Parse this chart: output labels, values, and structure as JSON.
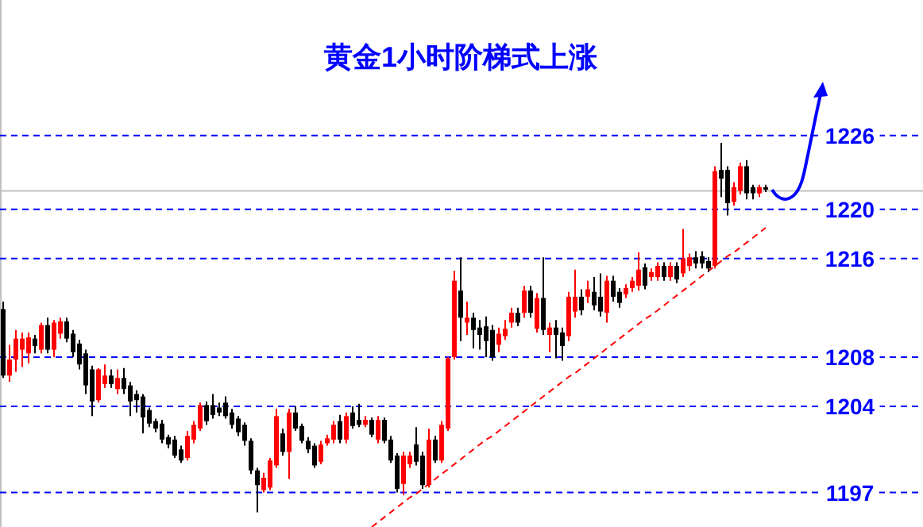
{
  "chart_data": {
    "type": "candlestick",
    "title": "黄金1小时阶梯式上涨",
    "categories": [
      null,
      null,
      null,
      null,
      null,
      null,
      null,
      null,
      null,
      null,
      null,
      null,
      null,
      null,
      null,
      null,
      null,
      null,
      null,
      null,
      null,
      null,
      null,
      null,
      null,
      null,
      null,
      null,
      null,
      null,
      null,
      null,
      null,
      null,
      null,
      null,
      null,
      null,
      null,
      null,
      null,
      null,
      null,
      null,
      null,
      null,
      null,
      null,
      null,
      null,
      null,
      null,
      null,
      null,
      null,
      null,
      null,
      null,
      null,
      null,
      null,
      null,
      null,
      null,
      null,
      null,
      null,
      null,
      null,
      null,
      null,
      null,
      null,
      null,
      null,
      null,
      null,
      null,
      null,
      null,
      null,
      null,
      null,
      null,
      null,
      null,
      null,
      null,
      null,
      null,
      null,
      null,
      null,
      null,
      null,
      null,
      null,
      null,
      null,
      null,
      null,
      null,
      null,
      null,
      null,
      null,
      null,
      null,
      null,
      null,
      null,
      null,
      null,
      null,
      null,
      null,
      null,
      null,
      null,
      null,
      null
    ],
    "ohlc": [
      [
        1211.9,
        1212.5,
        1206.3,
        1206.5
      ],
      [
        1206.5,
        1209.0,
        1206.0,
        1207.8
      ],
      [
        1207.8,
        1210.2,
        1206.8,
        1209.5
      ],
      [
        1208.6,
        1210.0,
        1207.2,
        1209.5
      ],
      [
        1208.3,
        1210.0,
        1207.5,
        1209.6
      ],
      [
        1209.5,
        1209.8,
        1208.3,
        1208.9
      ],
      [
        1208.6,
        1210.8,
        1208.3,
        1210.6
      ],
      [
        1210.6,
        1211.2,
        1208.3,
        1208.6
      ],
      [
        1208.6,
        1211.0,
        1208.0,
        1210.8
      ],
      [
        1209.9,
        1211.2,
        1209.5,
        1210.9
      ],
      [
        1210.9,
        1211.2,
        1209.2,
        1209.5
      ],
      [
        1209.9,
        1210.2,
        1208.0,
        1208.4
      ],
      [
        1209.1,
        1209.4,
        1207.0,
        1207.4
      ],
      [
        1208.3,
        1208.6,
        1205.0,
        1205.7
      ],
      [
        1207.0,
        1207.3,
        1203.2,
        1204.4
      ],
      [
        1204.5,
        1207.1,
        1204.3,
        1207.0
      ],
      [
        1205.8,
        1207.4,
        1205.5,
        1206.5
      ],
      [
        1206.5,
        1207.0,
        1205.5,
        1205.8
      ],
      [
        1205.4,
        1207.0,
        1205.0,
        1206.3
      ],
      [
        1206.3,
        1207.1,
        1205.0,
        1205.4
      ],
      [
        1205.7,
        1206.0,
        1203.2,
        1204.4
      ],
      [
        1205.0,
        1205.3,
        1203.5,
        1204.5
      ],
      [
        1204.8,
        1205.0,
        1201.8,
        1203.1
      ],
      [
        1203.7,
        1203.9,
        1202.3,
        1202.6
      ],
      [
        1202.8,
        1203.0,
        1201.9,
        1202.2
      ],
      [
        1202.6,
        1202.9,
        1201.0,
        1201.3
      ],
      [
        1201.5,
        1201.7,
        1200.6,
        1200.9
      ],
      [
        1201.3,
        1201.6,
        1199.8,
        1200.0
      ],
      [
        1200.5,
        1200.8,
        1199.4,
        1199.6
      ],
      [
        1199.8,
        1202.0,
        1199.6,
        1201.6
      ],
      [
        1201.3,
        1202.8,
        1201.0,
        1202.5
      ],
      [
        1202.2,
        1204.3,
        1202.0,
        1204.1
      ],
      [
        1204.1,
        1204.4,
        1202.5,
        1202.8
      ],
      [
        1204.1,
        1205.0,
        1203.0,
        1203.3
      ],
      [
        1203.9,
        1204.3,
        1203.2,
        1203.5
      ],
      [
        1204.3,
        1204.8,
        1203.0,
        1203.2
      ],
      [
        1203.5,
        1203.8,
        1202.2,
        1202.5
      ],
      [
        1203.0,
        1203.2,
        1201.6,
        1201.9
      ],
      [
        1202.5,
        1202.7,
        1200.8,
        1201.2
      ],
      [
        1201.2,
        1201.4,
        1198.5,
        1198.8
      ],
      [
        1198.8,
        1199.0,
        1195.4,
        1197.6
      ],
      [
        1197.2,
        1198.6,
        1197.0,
        1198.2
      ],
      [
        1197.4,
        1199.8,
        1197.2,
        1199.6
      ],
      [
        1199.2,
        1203.8,
        1199.0,
        1203.2
      ],
      [
        1201.8,
        1202.2,
        1200.0,
        1200.3
      ],
      [
        1200.3,
        1203.8,
        1198.1,
        1203.5
      ],
      [
        1203.5,
        1204.0,
        1202.0,
        1202.2
      ],
      [
        1202.4,
        1202.6,
        1201.0,
        1201.2
      ],
      [
        1201.2,
        1201.5,
        1200.2,
        1200.5
      ],
      [
        1200.8,
        1201.0,
        1199.0,
        1199.2
      ],
      [
        1199.5,
        1201.2,
        1199.3,
        1200.9
      ],
      [
        1201.0,
        1201.7,
        1200.8,
        1201.4
      ],
      [
        1201.3,
        1202.8,
        1201.0,
        1202.5
      ],
      [
        1202.8,
        1203.3,
        1201.0,
        1201.3
      ],
      [
        1201.3,
        1203.5,
        1201.0,
        1203.2
      ],
      [
        1203.5,
        1204.0,
        1202.2,
        1202.4
      ],
      [
        1202.9,
        1204.2,
        1202.3,
        1202.5
      ],
      [
        1202.5,
        1203.2,
        1202.3,
        1202.9
      ],
      [
        1202.9,
        1203.1,
        1201.5,
        1201.7
      ],
      [
        1201.3,
        1203.2,
        1201.0,
        1202.9
      ],
      [
        1202.9,
        1203.1,
        1201.0,
        1201.2
      ],
      [
        1201.3,
        1201.6,
        1199.4,
        1199.6
      ],
      [
        1200.0,
        1200.2,
        1197.0,
        1197.3
      ],
      [
        1197.7,
        1200.3,
        1196.8,
        1200.0
      ],
      [
        1199.3,
        1200.3,
        1199.0,
        1200.0
      ],
      [
        1200.9,
        1202.3,
        1199.2,
        1199.5
      ],
      [
        1200.0,
        1200.3,
        1197.3,
        1197.6
      ],
      [
        1197.6,
        1202.2,
        1197.4,
        1201.3
      ],
      [
        1201.3,
        1201.6,
        1199.4,
        1199.6
      ],
      [
        1199.6,
        1202.8,
        1199.4,
        1202.5
      ],
      [
        1202.2,
        1208.0,
        1202.0,
        1207.9
      ],
      [
        1208.0,
        1215.0,
        1207.8,
        1214.2
      ],
      [
        1213.4,
        1216.1,
        1209.3,
        1211.2
      ],
      [
        1210.8,
        1212.5,
        1209.8,
        1211.2
      ],
      [
        1211.2,
        1211.6,
        1208.7,
        1210.2
      ],
      [
        1210.4,
        1211.0,
        1208.6,
        1209.8
      ],
      [
        1210.5,
        1211.3,
        1208.0,
        1209.3
      ],
      [
        1210.2,
        1210.6,
        1207.7,
        1208.0
      ],
      [
        1209.0,
        1210.4,
        1208.4,
        1209.9
      ],
      [
        1209.7,
        1211.0,
        1209.4,
        1210.3
      ],
      [
        1210.8,
        1212.0,
        1210.4,
        1211.6
      ],
      [
        1211.6,
        1212.0,
        1210.5,
        1210.8
      ],
      [
        1211.6,
        1213.8,
        1211.2,
        1213.4
      ],
      [
        1213.4,
        1213.8,
        1211.2,
        1211.6
      ],
      [
        1210.3,
        1213.2,
        1210.0,
        1212.8
      ],
      [
        1212.8,
        1216.1,
        1209.8,
        1210.2
      ],
      [
        1209.8,
        1210.8,
        1208.4,
        1210.4
      ],
      [
        1210.4,
        1211.0,
        1207.9,
        1209.8
      ],
      [
        1210.0,
        1210.4,
        1207.7,
        1208.9
      ],
      [
        1209.7,
        1213.3,
        1209.3,
        1212.9
      ],
      [
        1211.7,
        1215.1,
        1211.2,
        1212.9
      ],
      [
        1212.9,
        1213.5,
        1211.4,
        1211.8
      ],
      [
        1212.9,
        1214.2,
        1212.4,
        1213.5
      ],
      [
        1213.3,
        1214.5,
        1211.8,
        1212.2
      ],
      [
        1212.9,
        1214.8,
        1211.3,
        1211.7
      ],
      [
        1211.6,
        1214.6,
        1210.8,
        1214.2
      ],
      [
        1214.2,
        1214.6,
        1212.5,
        1212.9
      ],
      [
        1213.3,
        1213.6,
        1212.0,
        1212.4
      ],
      [
        1213.1,
        1213.9,
        1212.8,
        1213.6
      ],
      [
        1213.6,
        1214.5,
        1213.3,
        1214.2
      ],
      [
        1213.8,
        1216.5,
        1213.4,
        1215.1
      ],
      [
        1215.3,
        1215.6,
        1213.5,
        1213.8
      ],
      [
        1214.5,
        1215.2,
        1214.2,
        1214.9
      ],
      [
        1214.5,
        1215.7,
        1214.2,
        1215.4
      ],
      [
        1215.4,
        1215.7,
        1214.2,
        1214.5
      ],
      [
        1214.5,
        1215.7,
        1214.2,
        1215.4
      ],
      [
        1215.4,
        1215.7,
        1214.0,
        1214.3
      ],
      [
        1214.8,
        1218.4,
        1214.5,
        1216.0
      ],
      [
        1215.4,
        1216.4,
        1215.0,
        1216.1
      ],
      [
        1216.1,
        1216.6,
        1215.2,
        1215.6
      ],
      [
        1216.2,
        1216.6,
        1215.2,
        1215.6
      ],
      [
        1215.8,
        1216.1,
        1214.9,
        1215.2
      ],
      [
        1215.4,
        1223.5,
        1215.2,
        1223.1
      ],
      [
        1223.2,
        1225.4,
        1221.0,
        1222.5
      ],
      [
        1223.2,
        1223.5,
        1219.5,
        1220.5
      ],
      [
        1220.6,
        1222.2,
        1220.3,
        1221.8
      ],
      [
        1221.5,
        1223.8,
        1221.2,
        1223.5
      ],
      [
        1223.5,
        1224.0,
        1220.8,
        1221.3
      ],
      [
        1221.8,
        1222.0,
        1220.8,
        1221.3
      ],
      [
        1221.3,
        1222.0,
        1221.0,
        1221.8
      ],
      [
        1221.8,
        1222.0,
        1221.4,
        1221.6
      ]
    ],
    "colors": [
      "#000000",
      "#ff0000",
      "#ff0000",
      "#ff0000",
      "#ff0000",
      "#000000",
      "#ff0000",
      "#000000",
      "#ff0000",
      "#ff0000",
      "#000000",
      "#000000",
      "#000000",
      "#000000",
      "#000000",
      "#ff0000",
      "#ff0000",
      "#000000",
      "#ff0000",
      "#000000",
      "#000000",
      "#000000",
      "#000000",
      "#000000",
      "#000000",
      "#000000",
      "#000000",
      "#000000",
      "#000000",
      "#ff0000",
      "#ff0000",
      "#ff0000",
      "#000000",
      "#000000",
      "#000000",
      "#000000",
      "#000000",
      "#000000",
      "#000000",
      "#000000",
      "#000000",
      "#ff0000",
      "#ff0000",
      "#ff0000",
      "#000000",
      "#ff0000",
      "#000000",
      "#000000",
      "#000000",
      "#000000",
      "#ff0000",
      "#ff0000",
      "#ff0000",
      "#000000",
      "#ff0000",
      "#000000",
      "#000000",
      "#ff0000",
      "#000000",
      "#ff0000",
      "#000000",
      "#000000",
      "#000000",
      "#ff0000",
      "#ff0000",
      "#000000",
      "#000000",
      "#ff0000",
      "#000000",
      "#ff0000",
      "#ff0000",
      "#ff0000",
      "#000000",
      "#ff0000",
      "#000000",
      "#000000",
      "#000000",
      "#000000",
      "#ff0000",
      "#ff0000",
      "#ff0000",
      "#000000",
      "#ff0000",
      "#000000",
      "#ff0000",
      "#000000",
      "#ff0000",
      "#000000",
      "#000000",
      "#ff0000",
      "#ff0000",
      "#000000",
      "#ff0000",
      "#000000",
      "#000000",
      "#ff0000",
      "#000000",
      "#000000",
      "#ff0000",
      "#ff0000",
      "#ff0000",
      "#000000",
      "#ff0000",
      "#ff0000",
      "#000000",
      "#ff0000",
      "#000000",
      "#ff0000",
      "#ff0000",
      "#000000",
      "#000000",
      "#000000",
      "#ff0000",
      "#000000",
      "#000000",
      "#ff0000",
      "#ff0000",
      "#000000",
      "#000000",
      "#ff0000",
      "#000000"
    ],
    "ylim": [
      1194.2,
      1237.0
    ],
    "yticks": [
      1197,
      1204,
      1208,
      1216,
      1220,
      1226
    ],
    "series": [
      {
        "type": "line",
        "values": [
          null,
          null,
          null,
          null,
          null,
          null,
          null,
          null,
          null,
          null,
          null,
          null,
          null,
          null,
          null,
          null,
          null,
          null,
          null,
          null,
          null,
          null,
          null,
          null,
          null,
          null,
          null,
          null,
          null,
          null,
          null,
          null,
          null,
          null,
          null,
          null,
          null,
          null,
          null,
          null,
          null,
          null,
          null,
          null,
          null,
          null,
          null,
          null,
          null,
          null,
          null,
          null,
          null,
          null,
          null,
          null,
          null,
          null,
          1194.2,
          1194.6,
          1195.0,
          1195.4,
          1195.8,
          1196.2,
          1196.6,
          1196.9,
          1197.3,
          1197.7,
          1198.1,
          1198.5,
          1198.9,
          1199.3,
          1199.7,
          1200.1,
          1200.5,
          1200.9,
          1201.3,
          1201.6,
          1202.0,
          1202.4,
          1202.8,
          1203.2,
          1203.6,
          1204.0,
          1204.4,
          1204.8,
          1205.2,
          1205.6,
          1206.0,
          1206.4,
          1206.7,
          1207.1,
          1207.5,
          1207.9,
          1208.3,
          1208.7,
          1209.1,
          1209.5,
          1209.9,
          1210.3,
          1210.7,
          1211.1,
          1211.4,
          1211.8,
          1212.2,
          1212.6,
          1213.0,
          1213.4,
          1213.8,
          1214.2,
          1214.6,
          1215.0,
          1215.4,
          1215.8,
          1216.2,
          1216.5,
          1216.9,
          1217.3,
          1217.7,
          1218.1,
          1218.5
        ],
        "color": "#ff0000",
        "line_style": "dashed"
      }
    ],
    "ref_lines": [
      {
        "axis": "y",
        "value": 1221.5,
        "color": "#c0c0c0",
        "line_style": "solid"
      },
      {
        "axis": "y",
        "value": 1226,
        "color": "#0000ff",
        "line_style": "dashed"
      },
      {
        "axis": "y",
        "value": 1220,
        "color": "#0000ff",
        "line_style": "dashed"
      },
      {
        "axis": "y",
        "value": 1216,
        "color": "#0000ff",
        "line_style": "dashed"
      },
      {
        "axis": "y",
        "value": 1208,
        "color": "#0000ff",
        "line_style": "dashed"
      },
      {
        "axis": "y",
        "value": 1204,
        "color": "#0000ff",
        "line_style": "dashed"
      },
      {
        "axis": "y",
        "value": 1197,
        "color": "#0000ff",
        "line_style": "dashed"
      }
    ]
  }
}
